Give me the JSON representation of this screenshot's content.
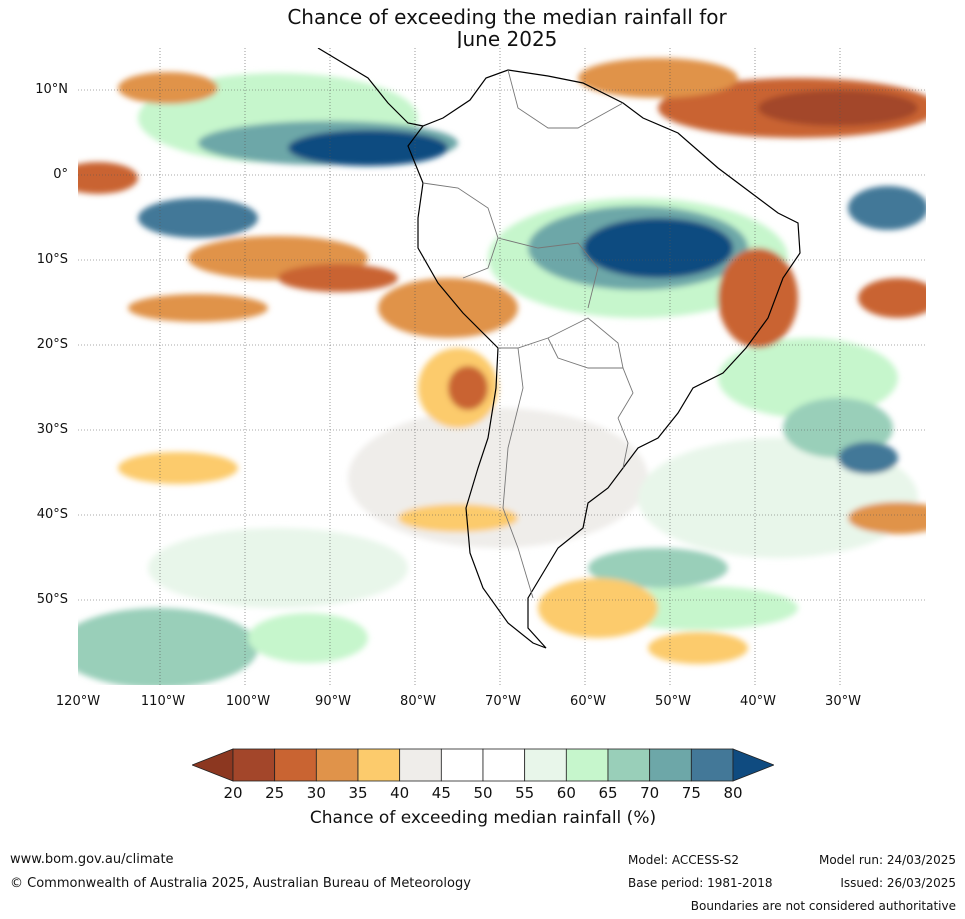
{
  "title_line1": "Chance of exceeding the median rainfall for",
  "title_line2": "June 2025",
  "lat_labels": [
    "10°N",
    "0°",
    "10°S",
    "20°S",
    "30°S",
    "40°S",
    "50°S"
  ],
  "lon_labels": [
    "120°W",
    "110°W",
    "100°W",
    "90°W",
    "80°W",
    "70°W",
    "60°W",
    "50°W",
    "40°W",
    "30°W"
  ],
  "legend": {
    "title": "Chance of exceeding median rainfall (%)",
    "ticks": [
      "20",
      "25",
      "30",
      "35",
      "40",
      "45",
      "50",
      "55",
      "60",
      "65",
      "70",
      "75",
      "80"
    ],
    "under_color": "#8c3720",
    "colors": [
      "#a3462a",
      "#c96432",
      "#e0934a",
      "#fccb6c",
      "#efedea",
      "#ffffff",
      "#ffffff",
      "#e8f6ea",
      "#c6f6cc",
      "#99cfb9",
      "#6da7a8",
      "#437898"
    ],
    "over_color": "#0f4b80"
  },
  "footer": {
    "website": "www.bom.gov.au/climate",
    "copyright": "© Commonwealth of Australia 2025, Australian Bureau of Meteorology",
    "model": "Model: ACCESS-S2",
    "base_period": "Base period: 1981-2018",
    "model_run": "Model run: 24/03/2025",
    "issued": "Issued: 26/03/2025",
    "disclaimer": "Boundaries are not considered authoritative"
  }
}
